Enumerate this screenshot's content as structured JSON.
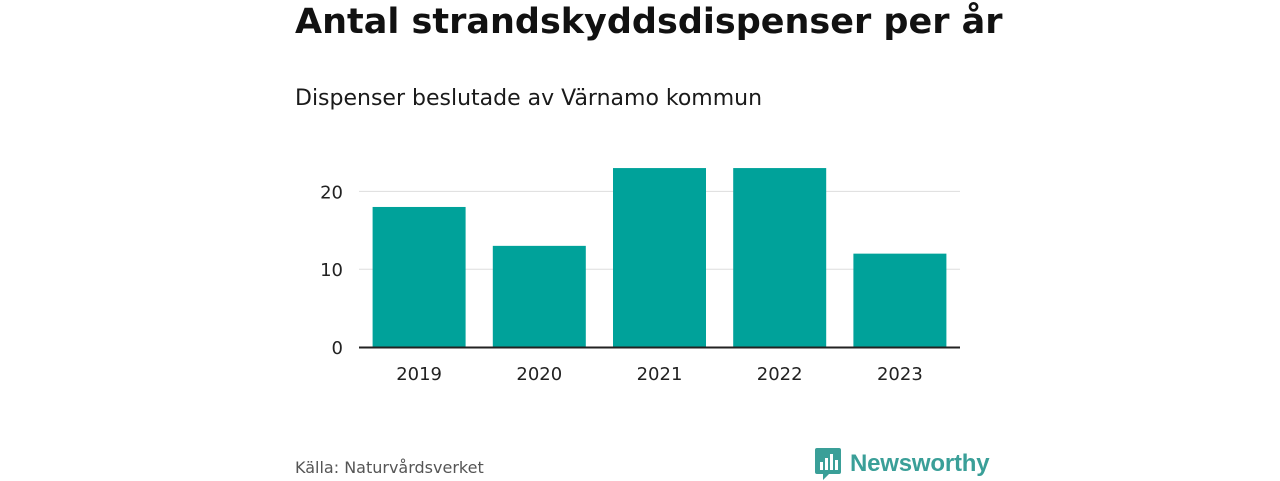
{
  "header": {
    "title": "Antal strandskyddsdispenser per år",
    "subtitle": "Dispenser beslutade av Värnamo kommun"
  },
  "footer": {
    "source": "Källa: Naturvårdsverket",
    "brand": "Newsworthy",
    "brand_icon": "bar-chart-speech-bubble-icon"
  },
  "colors": {
    "bar": "#00a29a",
    "grid": "#dddddd",
    "axis": "#222222",
    "brand": "#3a9f98"
  },
  "chart_data": {
    "type": "bar",
    "title": "Antal strandskyddsdispenser per år",
    "subtitle": "Dispenser beslutade av Värnamo kommun",
    "xlabel": "",
    "ylabel": "",
    "categories": [
      "2019",
      "2020",
      "2021",
      "2022",
      "2023"
    ],
    "series": [
      {
        "name": "Dispenser",
        "values": [
          18,
          13,
          23,
          23,
          12
        ]
      }
    ],
    "ylim": [
      0,
      26
    ],
    "yticks": [
      0,
      10,
      20
    ],
    "grid": true,
    "legend": "none"
  }
}
